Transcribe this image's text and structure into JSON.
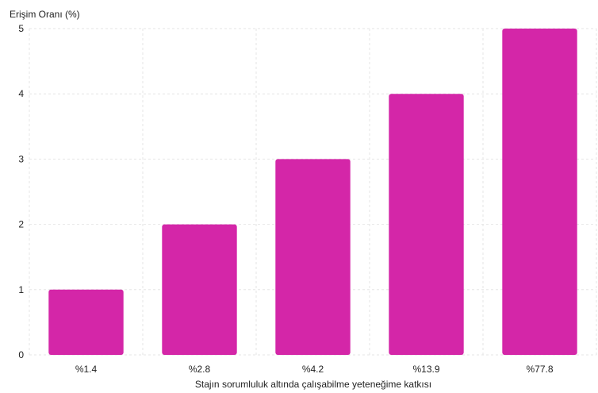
{
  "chart_data": {
    "type": "bar",
    "ylabel": "Erişim Oranı (%)",
    "xlabel": "Stajın sorumluluk altında çalışabilme yeteneğime katkısı",
    "categories": [
      "%1.4",
      "%2.8",
      "%4.2",
      "%13.9",
      "%77.8"
    ],
    "values": [
      1,
      2,
      3,
      4,
      5
    ],
    "ylim": [
      0,
      5
    ],
    "yticks": [
      "0",
      "1",
      "2",
      "3",
      "4",
      "5"
    ],
    "grid": true,
    "bar_color": "#d426a8",
    "grid_color": "#e6e6e6"
  }
}
